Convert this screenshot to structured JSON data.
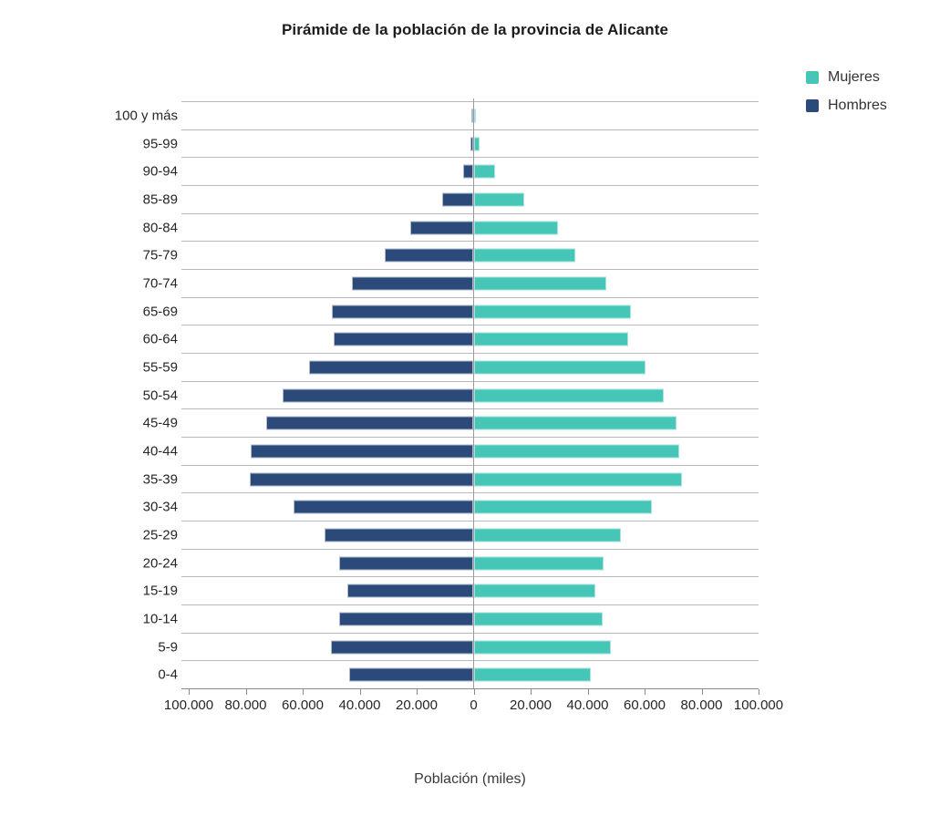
{
  "chart_data": {
    "type": "bar",
    "subtype": "population-pyramid",
    "title": "Pirámide de la población de la provincia de Alicante",
    "xlabel": "Población (miles)",
    "ylabel": "",
    "legend_position": "top-right",
    "grid": "horizontal-lines",
    "categories": [
      "100 y más",
      "95-99",
      "90-94",
      "85-89",
      "80-84",
      "75-79",
      "70-74",
      "65-69",
      "60-64",
      "55-59",
      "50-54",
      "45-49",
      "40-44",
      "35-39",
      "30-34",
      "25-29",
      "20-24",
      "15-19",
      "10-14",
      "5-9",
      "0-4"
    ],
    "series": [
      {
        "name": "Mujeres",
        "side": "right",
        "color": "#45c6b7",
        "values": [
          700,
          2000,
          7500,
          17500,
          29500,
          35500,
          46500,
          55000,
          54000,
          60000,
          66500,
          71000,
          72000,
          73000,
          62500,
          51500,
          45500,
          42500,
          45000,
          48000,
          41000
        ]
      },
      {
        "name": "Hombres",
        "side": "left",
        "color": "#2b4a79",
        "values": [
          400,
          1000,
          3500,
          11000,
          22000,
          31000,
          42500,
          49500,
          49000,
          57500,
          67000,
          72500,
          78000,
          78500,
          63000,
          52000,
          47000,
          44000,
          47000,
          50000,
          43500
        ]
      }
    ],
    "x_axis": {
      "min": -100000,
      "max": 100000,
      "tick_interval": 20000,
      "tick_labels": [
        "100.000",
        "80.000",
        "60.000",
        "40.000",
        "20.000",
        "0",
        "20.000",
        "40.000",
        "60.000",
        "80.000",
        "100.000"
      ]
    },
    "colors": {
      "mujeres": "#45c6b7",
      "hombres": "#2b4a79",
      "gridline": "#b9b9b9",
      "axis": "#8a8a8a"
    }
  }
}
